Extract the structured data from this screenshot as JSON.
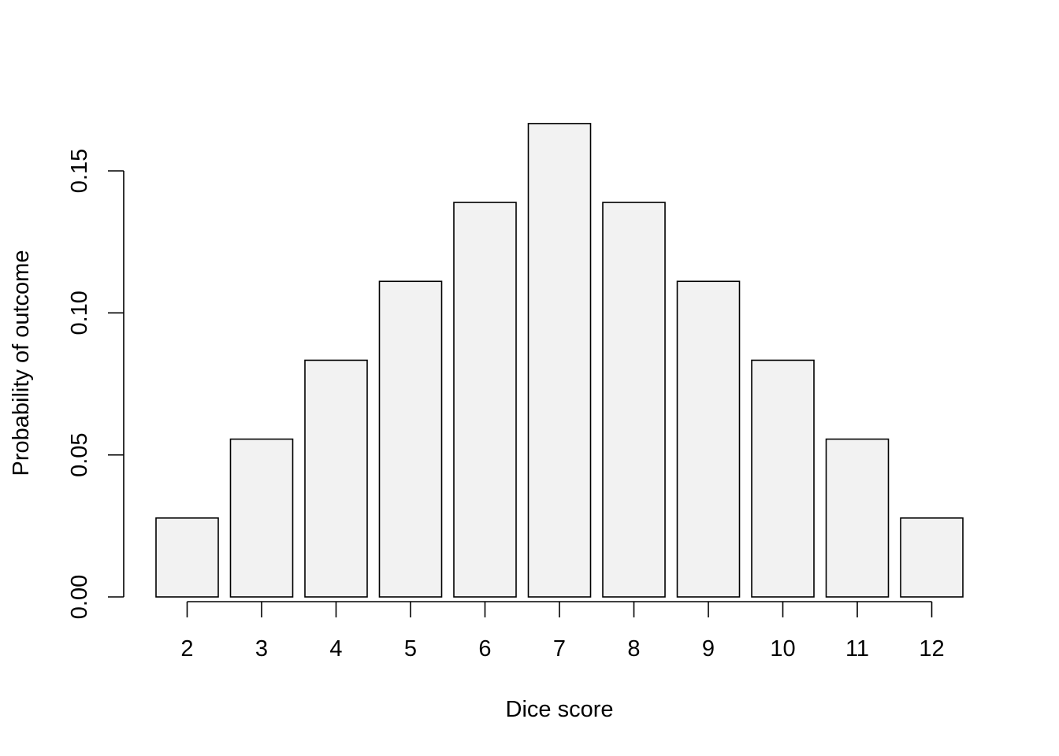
{
  "chart_data": {
    "type": "bar",
    "categories": [
      "2",
      "3",
      "4",
      "5",
      "6",
      "7",
      "8",
      "9",
      "10",
      "11",
      "12"
    ],
    "values": [
      0.02778,
      0.05556,
      0.08333,
      0.11111,
      0.13889,
      0.16667,
      0.13889,
      0.11111,
      0.08333,
      0.05556,
      0.02778
    ],
    "xlabel": "Dice score",
    "ylabel": "Probability of outcome",
    "ylim": [
      0,
      0.15
    ],
    "yticks": [
      "0.00",
      "0.05",
      "0.10",
      "0.15"
    ],
    "bar_fill": "#f2f2f2",
    "grid": false,
    "legend": "none"
  }
}
